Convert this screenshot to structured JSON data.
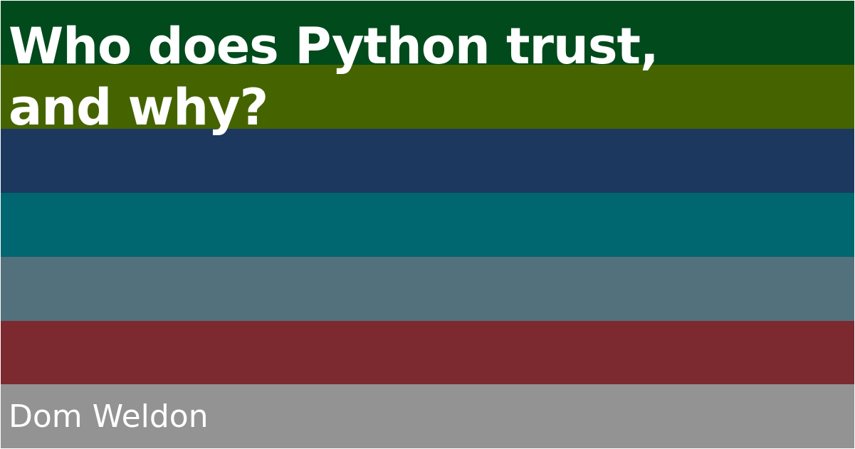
{
  "title": {
    "line1": "Who does Python trust,",
    "line2": "and why?"
  },
  "author": "Dom Weldon",
  "stripes": [
    "#004a1c",
    "#456400",
    "#1c385f",
    "#006670",
    "#53717c",
    "#7c2a2f",
    "#939393"
  ],
  "text_color": "#ffffff"
}
